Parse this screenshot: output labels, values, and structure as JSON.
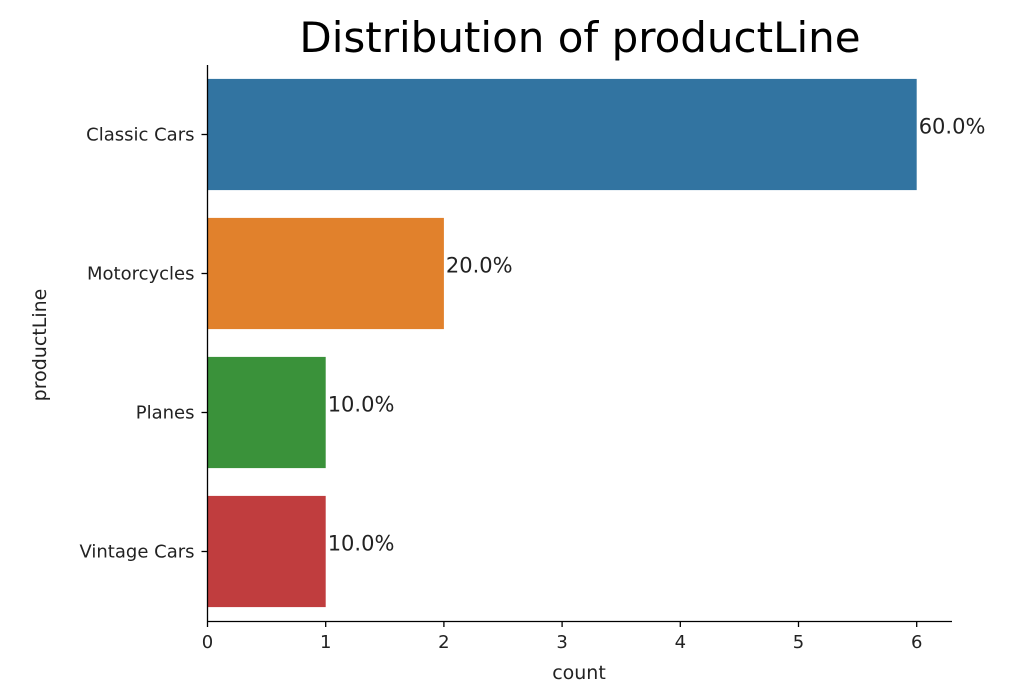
{
  "chart_data": {
    "type": "bar",
    "orientation": "horizontal",
    "title": "Distribution of productLine",
    "xlabel": "count",
    "ylabel": "productLine",
    "categories": [
      "Classic Cars",
      "Motorcycles",
      "Planes",
      "Vintage Cars"
    ],
    "values": [
      6,
      2,
      1,
      1
    ],
    "data_labels": [
      "60.0%",
      "20.0%",
      "10.0%",
      "10.0%"
    ],
    "colors": [
      "#3274a1",
      "#e1812c",
      "#3a923a",
      "#c03d3e"
    ],
    "xlim": [
      0,
      6.3
    ],
    "xticks": [
      0,
      1,
      2,
      3,
      4,
      5,
      6
    ],
    "grid": false,
    "legend": "none"
  }
}
